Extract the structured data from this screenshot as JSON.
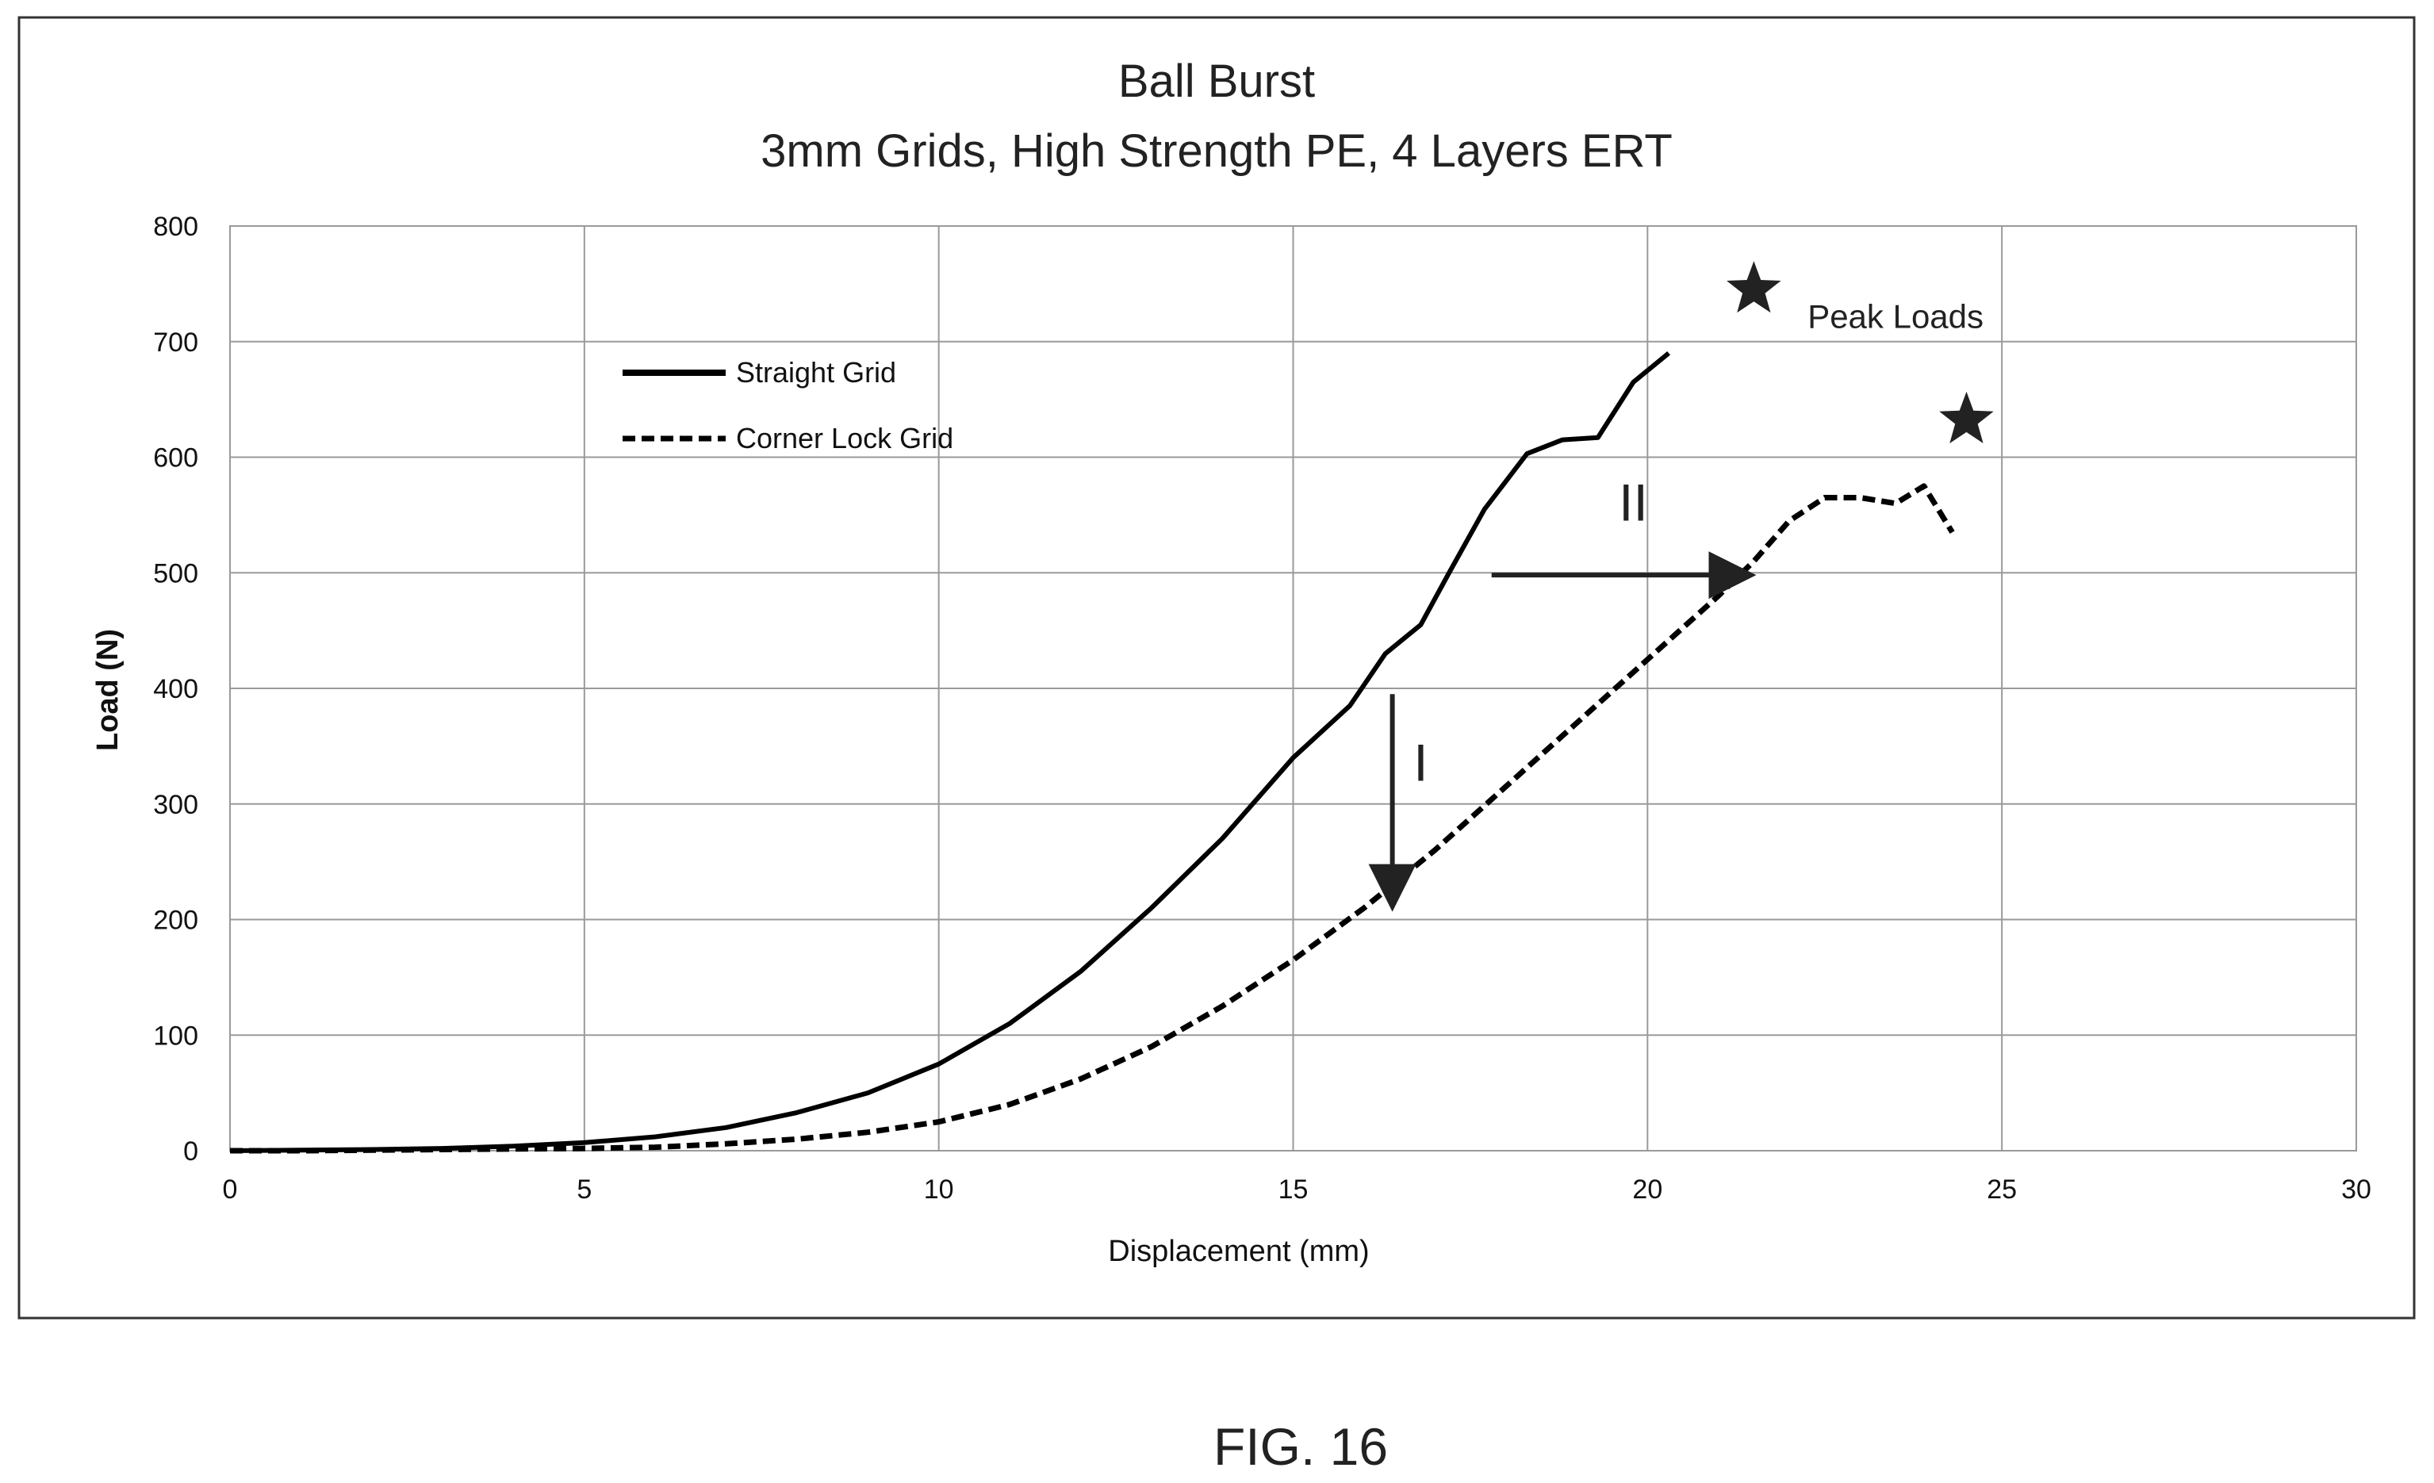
{
  "chart_data": {
    "type": "line",
    "title": "Ball Burst",
    "subtitle": "3mm Grids, High Strength PE, 4 Layers ERT",
    "xlabel": "Displacement (mm)",
    "ylabel": "Load (N)",
    "xlim": [
      0,
      30
    ],
    "ylim": [
      0,
      800
    ],
    "xticks": [
      0,
      5,
      10,
      15,
      20,
      25,
      30
    ],
    "yticks": [
      0,
      100,
      200,
      300,
      400,
      500,
      600,
      700,
      800
    ],
    "grid": true,
    "legend_position": "top-left",
    "series": [
      {
        "name": "Straight Grid",
        "style": "solid",
        "color": "#000000",
        "x": [
          0,
          1,
          2,
          3,
          4,
          5,
          6,
          7,
          8,
          9,
          10,
          11,
          12,
          13,
          14,
          15,
          15.8,
          16.3,
          16.8,
          17.2,
          17.7,
          18.3,
          18.8,
          19.3,
          19.8,
          20.3
        ],
        "y": [
          0,
          0.5,
          1,
          2,
          4,
          7,
          12,
          20,
          33,
          50,
          75,
          110,
          155,
          210,
          270,
          340,
          385,
          430,
          455,
          500,
          555,
          603,
          615,
          617,
          665,
          690
        ]
      },
      {
        "name": "Corner Lock Grid",
        "style": "dashed",
        "color": "#000000",
        "x": [
          0,
          1,
          2,
          3,
          4,
          5,
          6,
          7,
          8,
          9,
          10,
          11,
          12,
          13,
          14,
          15,
          16,
          17,
          18,
          19,
          20,
          21,
          21.5,
          22,
          22.5,
          23,
          23.5,
          23.9,
          24.3
        ],
        "y": [
          0,
          0,
          0.5,
          1,
          1.5,
          2,
          3,
          6,
          10,
          16,
          25,
          40,
          62,
          90,
          125,
          165,
          210,
          260,
          315,
          370,
          425,
          480,
          510,
          545,
          565,
          565,
          560,
          575,
          535
        ]
      }
    ],
    "annotations": [
      {
        "text": "Peak Loads",
        "x": 23.5,
        "y": 712
      },
      {
        "text": "I",
        "x": 16.8,
        "y": 320
      },
      {
        "text": "II",
        "x": 19.8,
        "y": 545
      }
    ],
    "markers": [
      {
        "icon": "star-icon",
        "x": 21.5,
        "y": 745
      },
      {
        "icon": "star-icon",
        "x": 24.5,
        "y": 632
      }
    ],
    "arrows": [
      {
        "label": "I",
        "from": [
          16.4,
          395
        ],
        "to": [
          16.4,
          215
        ]
      },
      {
        "label": "II",
        "from": [
          17.8,
          498
        ],
        "to": [
          21.4,
          498
        ]
      }
    ]
  },
  "figure_caption": "FIG. 16"
}
